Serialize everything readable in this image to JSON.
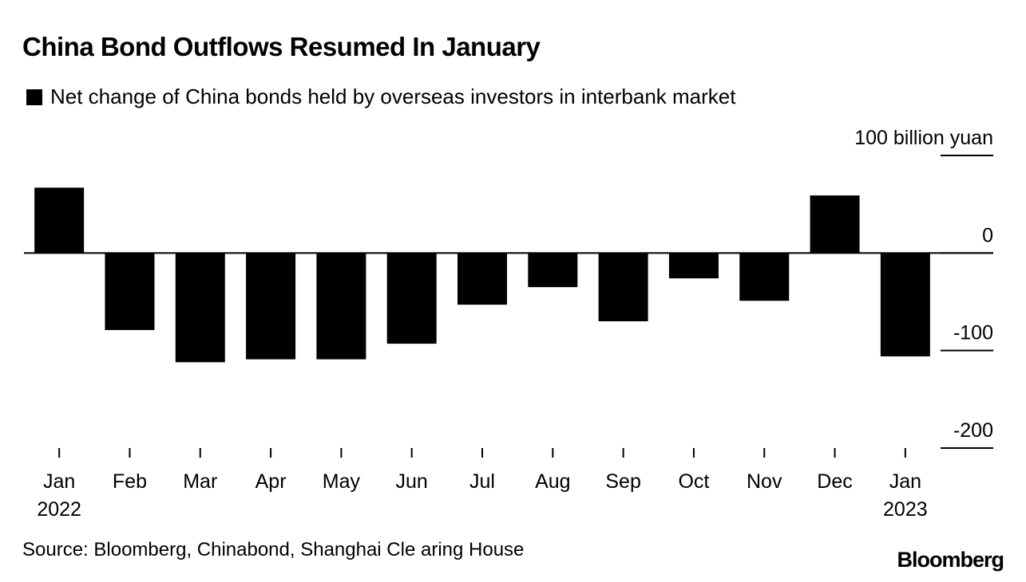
{
  "title": "China Bond Outflows Resumed In January",
  "legend": {
    "label": "Net change of China bonds held by overseas investors in interbank market"
  },
  "source": "Source: Bloomberg, Chinabond, Shanghai Cle aring House",
  "logo": "Bloomberg",
  "chart_data": {
    "type": "bar",
    "title": "China Bond Outflows Resumed In January",
    "series": [
      {
        "name": "Net change of China bonds held by overseas investors in interbank market",
        "values": [
          67,
          -79,
          -112,
          -109,
          -109,
          -93,
          -53,
          -35,
          -70,
          -26,
          -49,
          59,
          -106
        ],
        "color": "#000000"
      }
    ],
    "categories": [
      "Jan",
      "Feb",
      "Mar",
      "Apr",
      "May",
      "Jun",
      "Jul",
      "Aug",
      "Sep",
      "Oct",
      "Nov",
      "Dec",
      "Jan"
    ],
    "years": [
      "2022",
      "",
      "",
      "",
      "",
      "",
      "",
      "",
      "",
      "",
      "",
      "",
      "2023"
    ],
    "ylabel": "100 billion yuan",
    "yticks": [
      {
        "value": 100,
        "label": "100 billion yuan"
      },
      {
        "value": 0,
        "label": "0"
      },
      {
        "value": -100,
        "label": "-100"
      },
      {
        "value": -200,
        "label": "-200"
      }
    ],
    "ylim": [
      -200,
      100
    ],
    "axis_side": "right",
    "grid": false
  }
}
